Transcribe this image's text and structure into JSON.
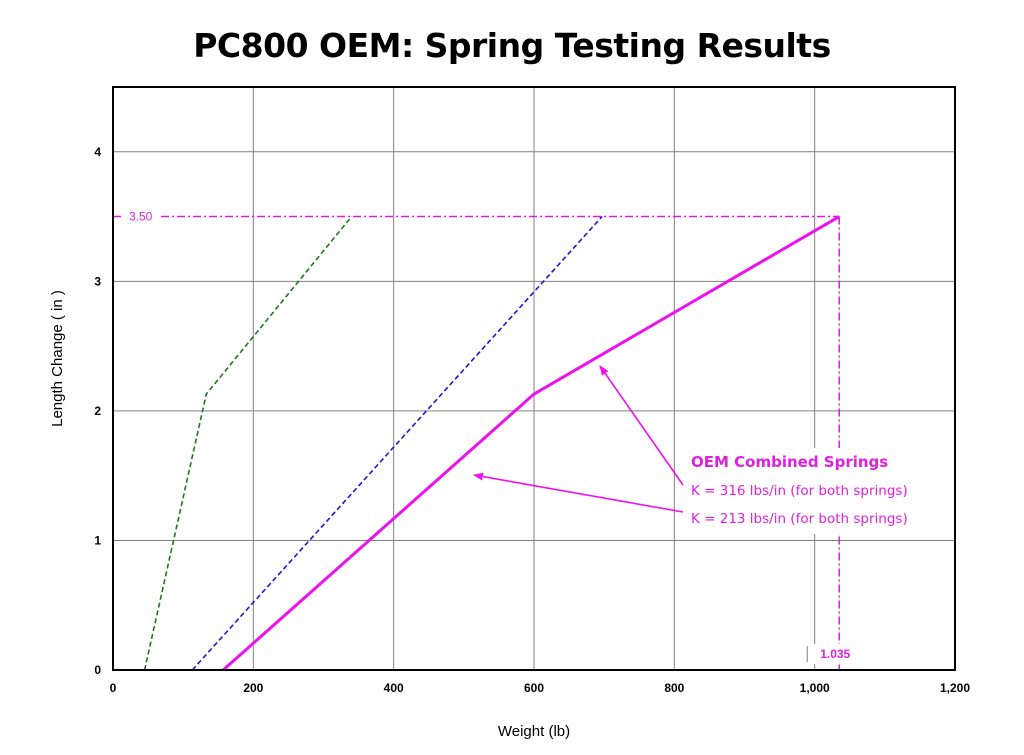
{
  "colors": {
    "magenta": "#ee10ee",
    "blue": "#1a1ad0",
    "green": "#1a7a1a",
    "grid": "#808080",
    "frame": "#000000"
  },
  "chart_data": {
    "type": "line",
    "title": "PC800 OEM: Spring Testing Results",
    "xlabel": "Weight (lb)",
    "ylabel": "Length Change  ( in )",
    "xlim": [
      0,
      1200
    ],
    "ylim": [
      0,
      4.5
    ],
    "x_ticks": [
      "0",
      "200",
      "400",
      "600",
      "800",
      "1,000",
      "1,200"
    ],
    "y_ticks": [
      "0",
      "1",
      "2",
      "3",
      "4"
    ],
    "grid": true,
    "series": [
      {
        "points": [
          [
            45,
            0
          ],
          [
            133,
            2.13
          ],
          [
            340,
            3.5
          ]
        ],
        "style": "dashed"
      },
      {
        "points": [
          [
            113,
            0
          ],
          [
            697,
            3.5
          ]
        ],
        "style": "dashed"
      },
      {
        "points": [
          [
            157,
            0
          ],
          [
            600,
            2.13
          ],
          [
            1035,
            3.5
          ]
        ],
        "style": "solid"
      }
    ],
    "reference_lines": {
      "y_value": 3.5,
      "y_label": "3.50",
      "x_value": 1035,
      "x_label": "1.035"
    },
    "annotations": {
      "title": "OEM Combined Springs",
      "line1": "K = 316 lbs/in (for both springs)",
      "line2": "K = 213 lbs/in (for both springs)"
    }
  }
}
